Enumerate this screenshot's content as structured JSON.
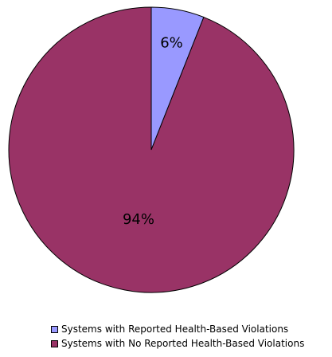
{
  "chart_data": {
    "type": "pie",
    "title": "",
    "series": [
      {
        "name": "Systems with Reported Health-Based Violations",
        "value": 6,
        "label": "6%",
        "color": "#9999ff"
      },
      {
        "name": "Systems with No Reported Health-Based Violations",
        "value": 94,
        "label": "94%",
        "color": "#993366"
      }
    ],
    "start_angle_deg": 0,
    "direction": "clockwise",
    "legend_position": "bottom"
  }
}
